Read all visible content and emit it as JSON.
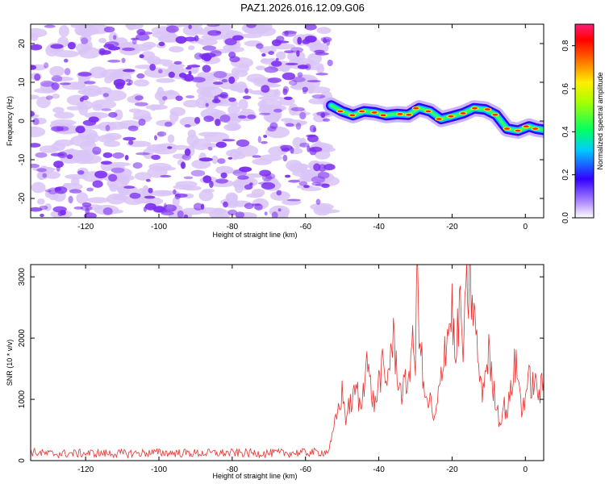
{
  "figure_title": "PAZ1.2026.016.12.09.G06",
  "colors": {
    "snr_line": "#e8312f",
    "noise_speckle": "#7a2cf0",
    "noise_light": "#d9c4f7",
    "background": "#ffffff"
  },
  "chart_data": [
    {
      "type": "heatmap",
      "title": "",
      "xlabel": "Height of straight line (km)",
      "ylabel": "Frequency (Hz)",
      "xlim": [
        -135,
        5
      ],
      "ylim": [
        -25,
        25
      ],
      "x_ticks": [
        -120,
        -100,
        -80,
        -60,
        -40,
        -20,
        0
      ],
      "y_ticks": [
        -20,
        -10,
        0,
        10,
        20
      ],
      "noise_region_x": [
        -135,
        -53
      ],
      "signal_ridge": {
        "x": [
          -53,
          -50,
          -47,
          -44,
          -41,
          -38,
          -35,
          -32,
          -29,
          -26,
          -23,
          -20,
          -17,
          -14,
          -11,
          -8,
          -5,
          -2,
          1,
          3,
          5
        ],
        "freq_hz": [
          4,
          2.5,
          1.5,
          2.5,
          2.2,
          1.5,
          1.8,
          1.6,
          3.3,
          2.5,
          0.5,
          1.2,
          2.0,
          3.3,
          3.0,
          1.6,
          -2.0,
          -2.5,
          -1.4,
          -2.0,
          -2.3
        ]
      },
      "colorbar": {
        "label": "Normalized spectral amplitude",
        "range": [
          0.0,
          0.9
        ],
        "ticks": [
          0.0,
          0.2,
          0.4,
          0.6,
          0.8
        ],
        "tick_labels": [
          "0.0",
          "0.2",
          "0.4",
          "0.6",
          "0.8"
        ]
      }
    },
    {
      "type": "line",
      "title": "",
      "xlabel": "Height of straight line (km)",
      "ylabel": "SNR (10 * v/v)",
      "xlim": [
        -135,
        5
      ],
      "ylim": [
        0,
        3200
      ],
      "x_ticks": [
        -120,
        -100,
        -80,
        -60,
        -40,
        -20,
        0
      ],
      "y_ticks": [
        0,
        1000,
        2000,
        3000
      ],
      "series": [
        {
          "name": "SNR",
          "x": [
            -135,
            -130,
            -120,
            -110,
            -100,
            -90,
            -80,
            -70,
            -60,
            -54,
            -53,
            -52,
            -51,
            -50,
            -49,
            -48,
            -47,
            -46,
            -45,
            -44,
            -43.5,
            -43,
            -42,
            -41,
            -40,
            -39,
            -38,
            -37,
            -36,
            -35,
            -34,
            -33,
            -32,
            -31,
            -30,
            -29.5,
            -29,
            -28.5,
            -28,
            -27,
            -26,
            -25,
            -24,
            -23,
            -22,
            -21,
            -20,
            -19,
            -18,
            -17,
            -16,
            -15,
            -14,
            -13,
            -12,
            -11,
            -10,
            -9,
            -8,
            -7,
            -6,
            -5,
            -4,
            -3,
            -2,
            -1,
            0,
            1,
            2,
            3,
            4,
            5
          ],
          "y": [
            140,
            110,
            120,
            115,
            130,
            120,
            125,
            120,
            130,
            140,
            300,
            600,
            850,
            1100,
            700,
            900,
            1000,
            1200,
            800,
            1300,
            2000,
            1500,
            1100,
            900,
            1300,
            1500,
            1200,
            1700,
            1950,
            1500,
            1100,
            1200,
            1300,
            1900,
            1600,
            3100,
            2300,
            1900,
            1300,
            900,
            1000,
            600,
            900,
            1400,
            1900,
            2100,
            2500,
            1500,
            2600,
            1800,
            2700,
            2800,
            2400,
            1700,
            1100,
            1400,
            1800,
            1200,
            1000,
            600,
            900,
            800,
            1100,
            1600,
            1400,
            800,
            1100,
            1300,
            1250,
            1200,
            1100,
            1300
          ]
        }
      ]
    }
  ]
}
